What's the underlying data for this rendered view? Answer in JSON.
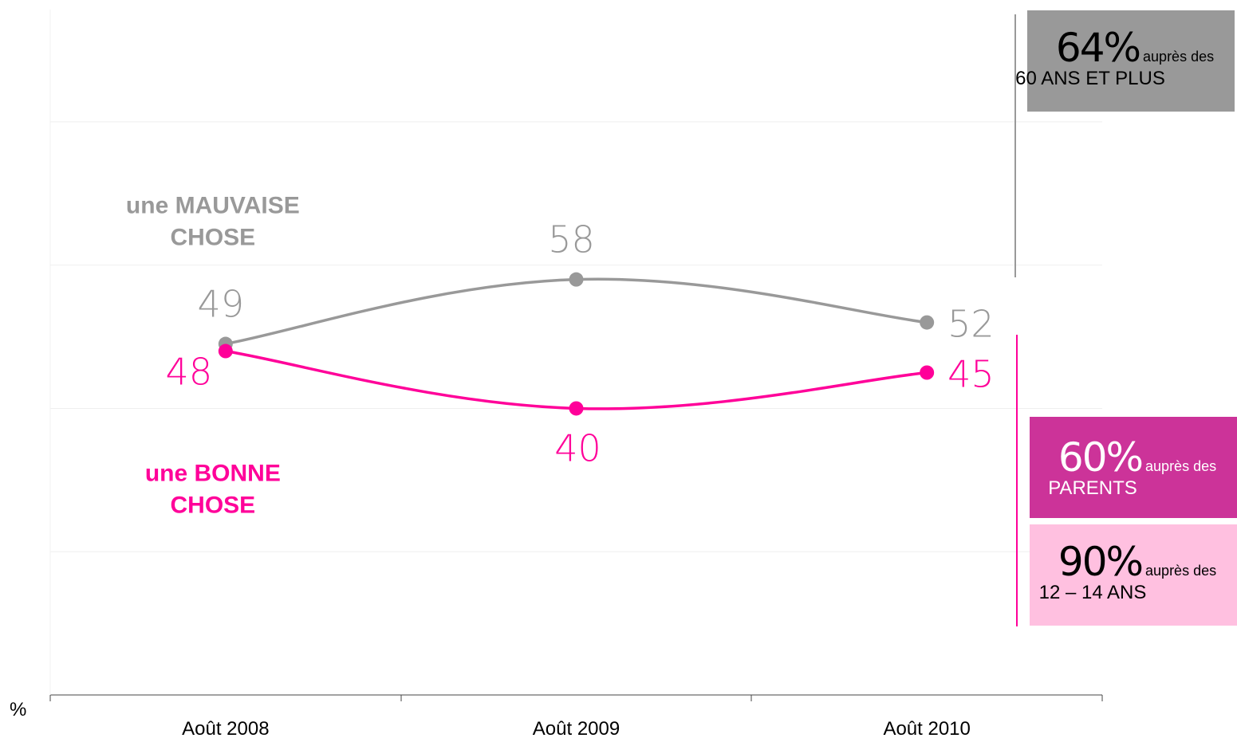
{
  "chart_data": {
    "type": "line",
    "categories": [
      "Août 2008",
      "Août 2009",
      "Août 2010"
    ],
    "unit_label": "%",
    "ylim": [
      0,
      90
    ],
    "grid": true,
    "series": [
      {
        "name": "une MAUVAISE CHOSE",
        "label_lines": [
          "une MAUVAISE",
          "CHOSE"
        ],
        "values": [
          49,
          58,
          52
        ],
        "color": "#999999"
      },
      {
        "name": "une BONNE CHOSE",
        "label_lines": [
          "une BONNE",
          "CHOSE"
        ],
        "values": [
          48,
          40,
          45
        ],
        "color": "#ff0099"
      }
    ]
  },
  "callouts": {
    "seniors": {
      "big": "64%",
      "small": "auprès des",
      "group": "60 ANS ET PLUS",
      "color": "#999999"
    },
    "parents": {
      "big": "60%",
      "small": "auprès des",
      "group": "PARENTS",
      "color": "#cc3399"
    },
    "teens": {
      "big": "90%",
      "small": "auprès des",
      "group": "12 – 14 ANS",
      "color": "#ffc0e0"
    }
  }
}
